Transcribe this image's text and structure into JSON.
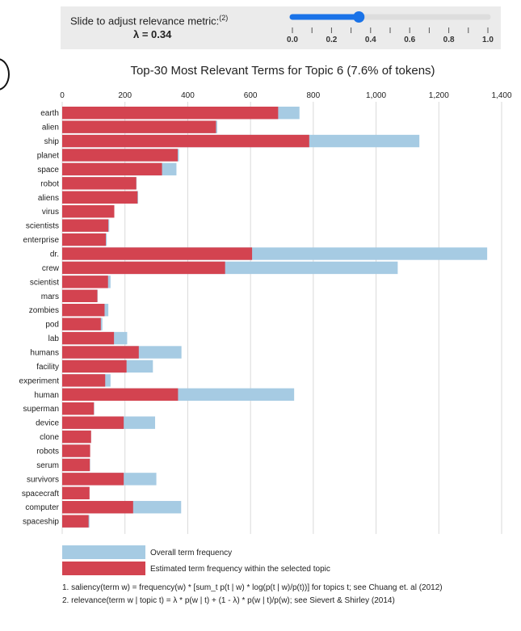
{
  "slider": {
    "label": "Slide to adjust relevance metric:",
    "label_sup": "(2)",
    "value_text": "λ = 0.34",
    "value": 0.34,
    "ticks": [
      "0.0",
      "0.2",
      "0.4",
      "0.6",
      "0.8",
      "1.0"
    ],
    "track_color": "#dddddd",
    "fill_color": "#1a73e8"
  },
  "chart_data": {
    "type": "bar",
    "title": "Top-30 Most Relevant Terms for Topic 6 (7.6% of tokens)",
    "xlim": [
      0,
      1400
    ],
    "xticks": [
      "0",
      "200",
      "400",
      "600",
      "800",
      "1,000",
      "1,200",
      "1,400"
    ],
    "xtick_values": [
      0,
      200,
      400,
      600,
      800,
      1000,
      1200,
      1400
    ],
    "grid": true,
    "orientation": "horizontal",
    "categories": [
      "earth",
      "alien",
      "ship",
      "planet",
      "space",
      "robot",
      "aliens",
      "virus",
      "scientists",
      "enterprise",
      "dr.",
      "crew",
      "scientist",
      "mars",
      "zombies",
      "pod",
      "lab",
      "humans",
      "facility",
      "experiment",
      "human",
      "superman",
      "device",
      "clone",
      "robots",
      "serum",
      "survivors",
      "spacecraft",
      "computer",
      "spaceship"
    ],
    "series": [
      {
        "name": "Overall term frequency",
        "color": "#a6cbe3",
        "values": [
          756,
          494,
          1138,
          372,
          364,
          237,
          242,
          166,
          150,
          142,
          1354,
          1069,
          154,
          113,
          147,
          128,
          207,
          380,
          289,
          154,
          739,
          102,
          296,
          92,
          89,
          89,
          300,
          87,
          379,
          87
        ]
      },
      {
        "name": "Estimated term frequency within the selected topic",
        "color": "#d34350",
        "values": [
          688,
          490,
          787,
          368,
          318,
          236,
          240,
          166,
          147,
          139,
          605,
          519,
          146,
          112,
          135,
          123,
          165,
          244,
          205,
          137,
          369,
          101,
          196,
          92,
          89,
          88,
          196,
          87,
          226,
          84
        ]
      }
    ],
    "legend": [
      {
        "label": "Overall term frequency",
        "color": "#a6cbe3"
      },
      {
        "label": "Estimated term frequency within the selected topic",
        "color": "#d34350"
      }
    ],
    "legend_placement": "bottom-left"
  },
  "footnotes": {
    "note1": "1. saliency(term w) = frequency(w) * [sum_t p(t | w) * log(p(t | w)/p(t))] for topics t; see Chuang et. al (2012)",
    "note2": "2. relevance(term w | topic t) = λ * p(w | t) + (1 - λ) * p(w | t)/p(w); see Sievert & Shirley (2014)"
  }
}
